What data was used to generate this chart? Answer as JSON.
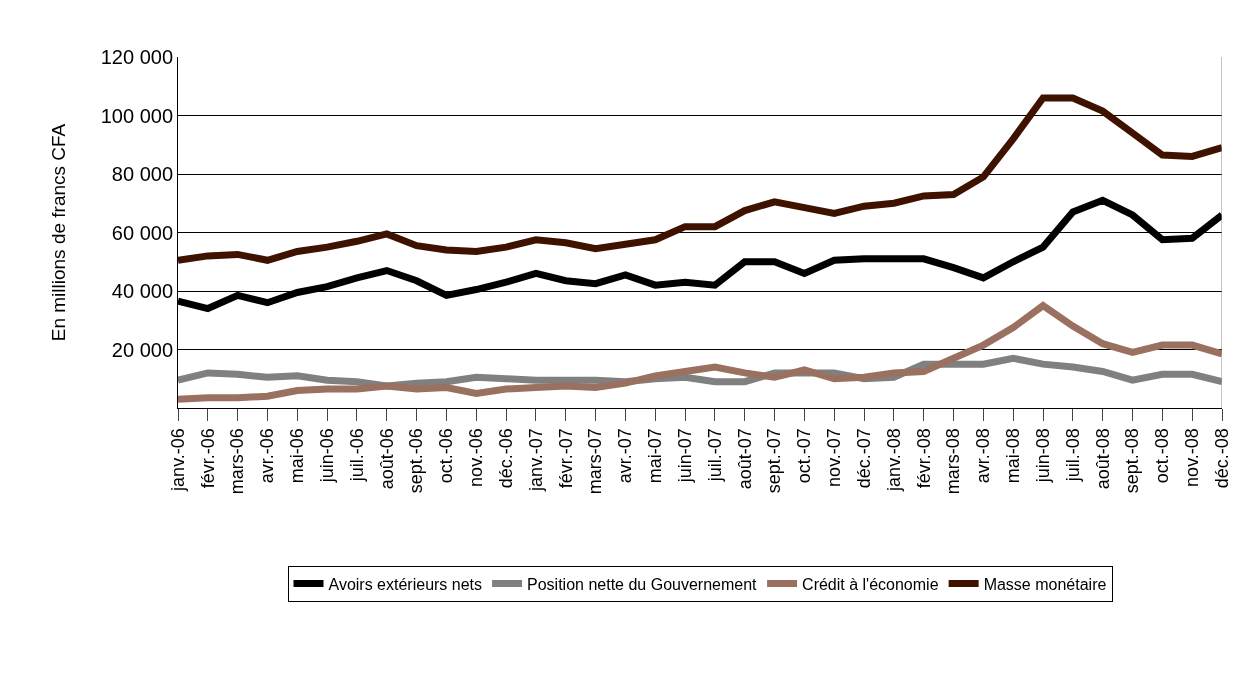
{
  "chart_data": {
    "type": "line",
    "ylabel": "En millions de francs CFA",
    "categories": [
      "janv.-06",
      "févr.-06",
      "mars-06",
      "avr.-06",
      "mai-06",
      "juin-06",
      "juil.-06",
      "août-06",
      "sept.-06",
      "oct.-06",
      "nov.-06",
      "déc.-06",
      "janv.-07",
      "févr.-07",
      "mars-07",
      "avr.-07",
      "mai-07",
      "juin-07",
      "juil.-07",
      "août-07",
      "sept.-07",
      "oct.-07",
      "nov.-07",
      "déc.-07",
      "janv.-08",
      "févr.-08",
      "mars-08",
      "avr.-08",
      "mai-08",
      "juin-08",
      "juil.-08",
      "août-08",
      "sept.-08",
      "oct.-08",
      "nov.-08",
      "déc.-08"
    ],
    "series": [
      {
        "name": "Avoirs extérieurs nets",
        "color": "#000000",
        "values": [
          36500,
          34000,
          38500,
          36000,
          39500,
          41500,
          44500,
          47000,
          43500,
          38500,
          40500,
          43000,
          46000,
          43500,
          42500,
          45500,
          42000,
          43000,
          42000,
          50000,
          50000,
          46000,
          50500,
          51000,
          51000,
          51000,
          48000,
          44500,
          50000,
          55000,
          67000,
          71000,
          66000,
          57500,
          58000,
          66000
        ]
      },
      {
        "name": "Position nette du Gouvernement",
        "color": "#808080",
        "values": [
          9500,
          12000,
          11500,
          10500,
          11000,
          9500,
          9000,
          7500,
          8500,
          9000,
          10500,
          10000,
          9500,
          9500,
          9500,
          9000,
          10000,
          10500,
          9000,
          9000,
          12000,
          12000,
          12000,
          10000,
          10500,
          15000,
          15000,
          15000,
          17000,
          15000,
          14000,
          12500,
          9500,
          11500,
          11500,
          9000
        ]
      },
      {
        "name": "Crédit à l'économie",
        "color": "#9a7060",
        "values": [
          3000,
          3500,
          3500,
          4000,
          6000,
          6500,
          6500,
          7500,
          6500,
          7000,
          5000,
          6500,
          7000,
          7500,
          7000,
          8500,
          11000,
          12500,
          14000,
          12000,
          10500,
          13000,
          10000,
          10500,
          12000,
          12500,
          17000,
          21500,
          27500,
          35000,
          28000,
          22000,
          19000,
          21500,
          21500,
          18500
        ]
      },
      {
        "name": "Masse monétaire",
        "color": "#3f1200",
        "values": [
          50500,
          52000,
          52500,
          50500,
          53500,
          55000,
          57000,
          59500,
          55500,
          54000,
          53500,
          55000,
          57500,
          56500,
          54500,
          56000,
          57500,
          62000,
          62000,
          67500,
          70500,
          68500,
          66500,
          69000,
          70000,
          72500,
          73000,
          79000,
          92000,
          106000,
          106000,
          101500,
          94000,
          86500,
          86000,
          89000
        ]
      }
    ],
    "ylim": [
      0,
      120000
    ],
    "yticks": [
      {
        "value": 20000,
        "label": "20 000"
      },
      {
        "value": 40000,
        "label": "40 000"
      },
      {
        "value": 60000,
        "label": "60 000"
      },
      {
        "value": 80000,
        "label": "80 000"
      },
      {
        "value": 100000,
        "label": "100 000"
      },
      {
        "value": 120000,
        "label": "120 000"
      }
    ],
    "grid": "y",
    "legend": "bottom",
    "marker": "none",
    "line_style": "solid"
  }
}
